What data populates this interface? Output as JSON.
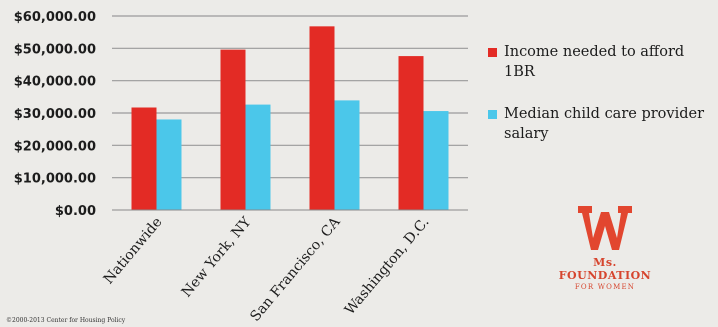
{
  "chart_data": {
    "type": "bar",
    "categories": [
      "Nationwide",
      "New York, NY",
      "San Francisco, CA",
      "Washington, D.C."
    ],
    "series": [
      {
        "name": "Income needed to afford 1BR",
        "color": "#e32b25",
        "values": [
          31700,
          49600,
          56800,
          47600
        ]
      },
      {
        "name": "Median child care provider salary",
        "color": "#4bc7ea",
        "values": [
          28000,
          32600,
          33900,
          30600
        ]
      }
    ],
    "ylim": [
      0,
      60000
    ],
    "ytick_labels": [
      "$0.00",
      "$10,000.00",
      "$20,000.00",
      "$30,000.00",
      "$40,000.00",
      "$50,000.00",
      "$60,000.00"
    ],
    "grid": true,
    "legend_position": "right",
    "title": "",
    "xlabel": "",
    "ylabel": ""
  },
  "legend": {
    "series_1_label": "Income needed to afford 1BR",
    "series_2_label": "Median child care provider salary"
  },
  "brand": {
    "name": "Ms. FOUNDATION",
    "subtitle": "FOR WOMEN",
    "color": "#d6452e",
    "logo_icon": "ms-foundation-w-logo"
  },
  "copyright": "©2000-2013 Center for Housing Policy"
}
